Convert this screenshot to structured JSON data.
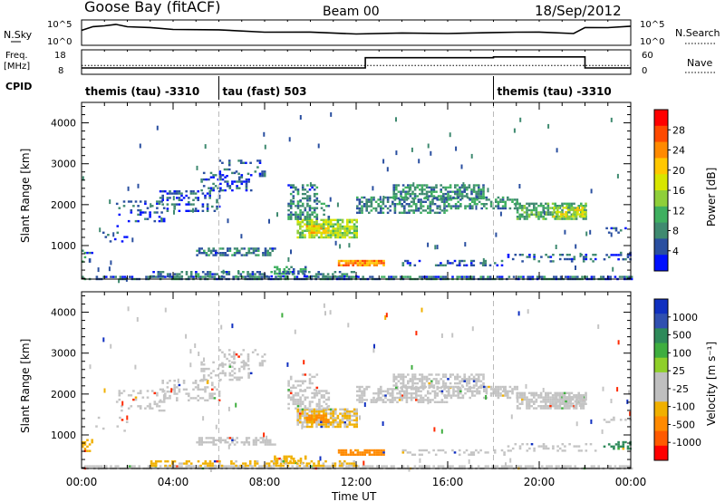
{
  "header": {
    "title": "Goose Bay (fitACF)",
    "beam": "Beam 00",
    "date": "18/Sep/2012"
  },
  "status_panels": {
    "nsky_label": "N.Sky",
    "nsky_ticks": [
      "10^5",
      "10^0"
    ],
    "nsearch_label": "N.Search",
    "nsearch_ticks": [
      "10^5",
      "10^0"
    ],
    "freq_label_1": "Freq.",
    "freq_label_2": "[MHz]",
    "freq_ticks": [
      "18",
      "8"
    ],
    "nave_label": "Nave",
    "nave_ticks": [
      "60",
      "0"
    ],
    "cpid_label": "CPID",
    "cpid_segments": [
      {
        "label": "themis (tau) -3310",
        "start_hour": 0,
        "end_hour": 6
      },
      {
        "label": "tau (fast) 503",
        "start_hour": 6,
        "end_hour": 18
      },
      {
        "label": "themis (tau) -3310",
        "start_hour": 18,
        "end_hour": 24
      }
    ]
  },
  "axes": {
    "x_ticks": [
      "00:00",
      "04:00",
      "08:00",
      "12:00",
      "16:00",
      "20:00",
      "00:00"
    ],
    "x_label": "Time UT",
    "y_label": "Slant Range [km]",
    "y_ticks": [
      "1000",
      "2000",
      "3000",
      "4000"
    ]
  },
  "power_bar": {
    "label": "Power [dB]",
    "ticks": [
      "28",
      "24",
      "20",
      "16",
      "12",
      "8",
      "4"
    ],
    "colors": [
      "#ff0000",
      "#ff4a00",
      "#ff8a00",
      "#ffc800",
      "#d8e600",
      "#8fcf3a",
      "#3fb060",
      "#3f8a70",
      "#2a4fa0",
      "#0010ff"
    ]
  },
  "velocity_bar": {
    "label": "Velocity [m s⁻¹]",
    "ticks": [
      "1000",
      "500",
      "100",
      "25",
      "-25",
      "-100",
      "-500",
      "-1000"
    ],
    "colors": [
      "#1030c0",
      "#3050b0",
      "#2e8a5a",
      "#3fae3f",
      "#8fd02a",
      "#bfbfbf",
      "#bfbfbf",
      "#f0b000",
      "#ff8a00",
      "#ff5a00",
      "#ff0000"
    ]
  },
  "chart_data": {
    "type": "heatmap",
    "x_range_hours": [
      0,
      24
    ],
    "y_range_km": [
      180,
      4500
    ],
    "panels": [
      "Power",
      "Velocity"
    ],
    "nsky": [
      {
        "hour": 0,
        "value": 3.2
      },
      {
        "hour": 0.5,
        "value": 3.8
      },
      {
        "hour": 1,
        "value": 4.2
      },
      {
        "hour": 1.5,
        "value": 4.3
      },
      {
        "hour": 2,
        "value": 4.0
      },
      {
        "hour": 3,
        "value": 3.6
      },
      {
        "hour": 4,
        "value": 3.4
      },
      {
        "hour": 6,
        "value": 3.1
      },
      {
        "hour": 8,
        "value": 2.8
      },
      {
        "hour": 10,
        "value": 2.6
      },
      {
        "hour": 12,
        "value": 2.4
      },
      {
        "hour": 14,
        "value": 2.4
      },
      {
        "hour": 16,
        "value": 2.5
      },
      {
        "hour": 18,
        "value": 2.5
      },
      {
        "hour": 19,
        "value": 2.8
      },
      {
        "hour": 20,
        "value": 2.6
      },
      {
        "hour": 21.5,
        "value": 2.5
      },
      {
        "hour": 22,
        "value": 3.6
      },
      {
        "hour": 23,
        "value": 3.8
      },
      {
        "hour": 24,
        "value": 3.9
      }
    ],
    "frequency_mhz": [
      {
        "hour": 0,
        "value": 10.5
      },
      {
        "hour": 10,
        "value": 10.5
      },
      {
        "hour": 10,
        "value": 10.5
      },
      {
        "hour": 12.4,
        "value": 10.5
      },
      {
        "hour": 12.4,
        "value": 15.2
      },
      {
        "hour": 18,
        "value": 15.2
      },
      {
        "hour": 18,
        "value": 15.6
      },
      {
        "hour": 22,
        "value": 15.6
      },
      {
        "hour": 22,
        "value": 10.5
      },
      {
        "hour": 24,
        "value": 10.5
      }
    ],
    "nave": [
      {
        "hour": 0,
        "value": 22
      },
      {
        "hour": 24,
        "value": 22
      }
    ],
    "echo_regions": [
      {
        "h0": 3.4,
        "h1": 6.0,
        "r0": 1850,
        "r1": 2350,
        "power": 5,
        "velocity": 0,
        "density": 0.35
      },
      {
        "h0": 5.2,
        "h1": 7.4,
        "r0": 2350,
        "r1": 2800,
        "power": 5,
        "velocity": 0,
        "density": 0.35
      },
      {
        "h0": 1.5,
        "h1": 3.6,
        "r0": 1600,
        "r1": 2100,
        "power": 4,
        "velocity": 0,
        "density": 0.25
      },
      {
        "h0": 0.6,
        "h1": 2.0,
        "r0": 1100,
        "r1": 1500,
        "power": 4,
        "velocity": 0,
        "density": 0.12
      },
      {
        "h0": 5.0,
        "h1": 8.4,
        "r0": 750,
        "r1": 950,
        "power": 6,
        "velocity": 0,
        "density": 0.55
      },
      {
        "h0": 6.0,
        "h1": 8.0,
        "r0": 2700,
        "r1": 3100,
        "power": 5,
        "velocity": 0,
        "density": 0.25
      },
      {
        "h0": 9.4,
        "h1": 12.0,
        "r0": 1200,
        "r1": 1650,
        "power": 14,
        "velocity": -30,
        "density": 0.8
      },
      {
        "h0": 9.0,
        "h1": 10.8,
        "r0": 1650,
        "r1": 2100,
        "power": 8,
        "velocity": 0,
        "density": 0.55
      },
      {
        "h0": 9.0,
        "h1": 10.3,
        "r0": 2100,
        "r1": 2500,
        "power": 6,
        "velocity": 0,
        "density": 0.35
      },
      {
        "h0": 9.8,
        "h1": 10.8,
        "r0": 1300,
        "r1": 1500,
        "power": 18,
        "velocity": -300,
        "density": 0.8
      },
      {
        "h0": 11.2,
        "h1": 13.2,
        "r0": 500,
        "r1": 650,
        "power": 22,
        "velocity": -200,
        "density": 0.9
      },
      {
        "h0": 8.4,
        "h1": 9.8,
        "r0": 300,
        "r1": 500,
        "power": 8,
        "velocity": -60,
        "density": 0.55
      },
      {
        "h0": 12.0,
        "h1": 16.0,
        "r0": 1800,
        "r1": 2200,
        "power": 7,
        "velocity": 0,
        "density": 0.55
      },
      {
        "h0": 13.6,
        "h1": 17.6,
        "r0": 2150,
        "r1": 2500,
        "power": 8,
        "velocity": 0,
        "density": 0.6
      },
      {
        "h0": 16.0,
        "h1": 19.0,
        "r0": 1900,
        "r1": 2200,
        "power": 8,
        "velocity": 0,
        "density": 0.55
      },
      {
        "h0": 19.0,
        "h1": 22.0,
        "r0": 1650,
        "r1": 2050,
        "power": 10,
        "velocity": 0,
        "density": 0.7
      },
      {
        "h0": 20.6,
        "h1": 22.0,
        "r0": 1700,
        "r1": 1950,
        "power": 16,
        "velocity": 0,
        "density": 0.6
      },
      {
        "h0": 14.0,
        "h1": 18.5,
        "r0": 500,
        "r1": 650,
        "power": 5,
        "velocity": 0,
        "density": 0.4
      },
      {
        "h0": 18.5,
        "h1": 22.5,
        "r0": 600,
        "r1": 800,
        "power": 5,
        "velocity": 0,
        "density": 0.3
      },
      {
        "h0": 22.8,
        "h1": 24.0,
        "r0": 650,
        "r1": 850,
        "power": 5,
        "velocity": 200,
        "density": 0.4
      },
      {
        "h0": 22.8,
        "h1": 24.0,
        "r0": 1300,
        "r1": 1450,
        "power": 4,
        "velocity": 0,
        "density": 0.2
      },
      {
        "h0": 0.0,
        "h1": 24.0,
        "r0": 180,
        "r1": 260,
        "power": 6,
        "velocity": 0,
        "density": 0.7
      },
      {
        "h0": 3.0,
        "h1": 12.0,
        "r0": 260,
        "r1": 380,
        "power": 6,
        "velocity": -40,
        "density": 0.45
      },
      {
        "h0": 0.0,
        "h1": 0.5,
        "r0": 600,
        "r1": 900,
        "power": 6,
        "velocity": -60,
        "density": 0.35
      }
    ]
  }
}
